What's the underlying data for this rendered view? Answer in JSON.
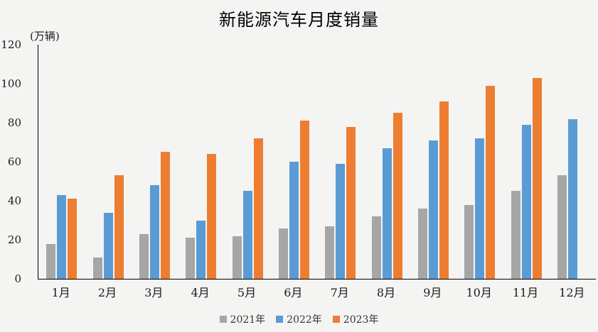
{
  "chart_data": {
    "type": "bar",
    "title": "新能源汽车月度销量",
    "unit_label": "(万辆)",
    "categories": [
      "1月",
      "2月",
      "3月",
      "4月",
      "5月",
      "6月",
      "7月",
      "8月",
      "9月",
      "10月",
      "11月",
      "12月"
    ],
    "series": [
      {
        "name": "2021年",
        "color": "#a6a6a6",
        "values": [
          18,
          11,
          23,
          21,
          22,
          26,
          27,
          32,
          36,
          38,
          45,
          53
        ]
      },
      {
        "name": "2022年",
        "color": "#5b9bd5",
        "values": [
          43,
          34,
          48,
          30,
          45,
          60,
          59,
          67,
          71,
          72,
          79,
          82
        ]
      },
      {
        "name": "2023年",
        "color": "#ed7d31",
        "values": [
          41,
          53,
          65,
          64,
          72,
          81,
          78,
          85,
          91,
          99,
          103,
          null
        ]
      }
    ],
    "ylim": [
      0,
      120
    ],
    "yticks": [
      0,
      20,
      40,
      60,
      80,
      100,
      120
    ],
    "xlabel": "",
    "ylabel": "",
    "grid": false,
    "legend_position": "bottom",
    "background_color": "#f4f4f3",
    "axis_color": "#000000",
    "text_color": "#1a1a1a"
  }
}
